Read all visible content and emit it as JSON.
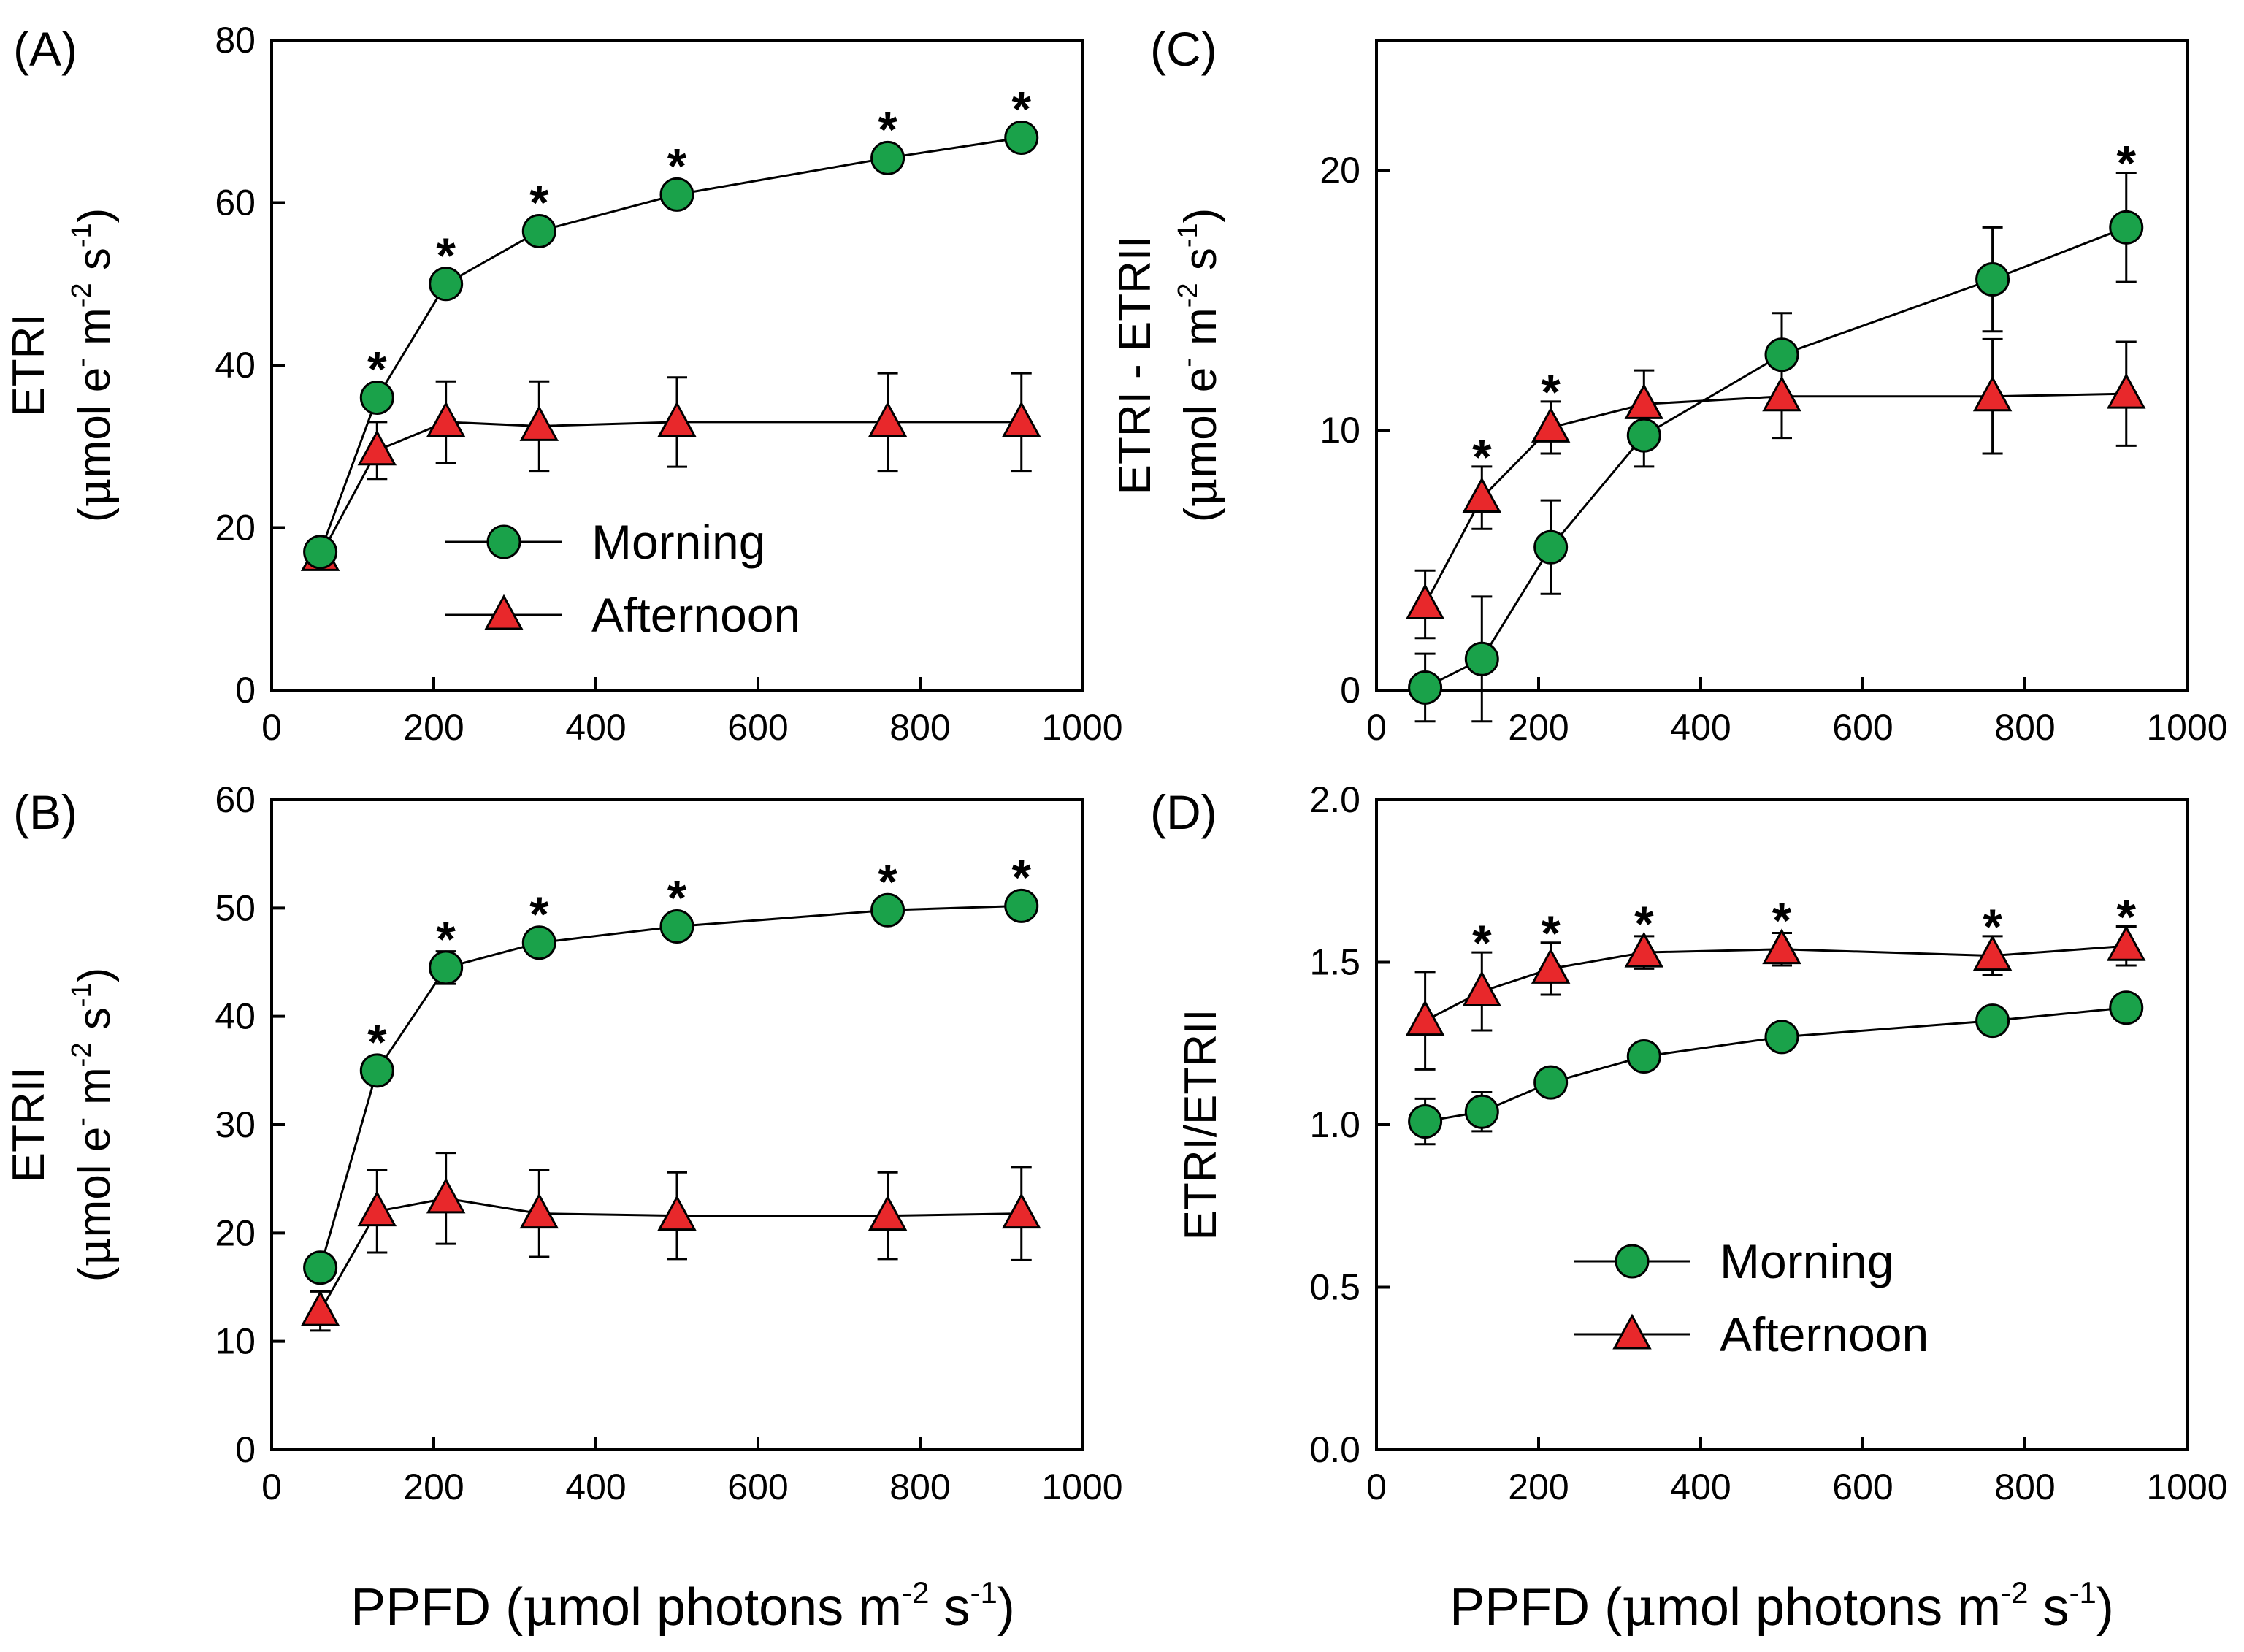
{
  "x_label": {
    "prefix": "PPFD (",
    "mu": "μ",
    "main": "mol photons m",
    "sup1": "-2",
    "mid": " s",
    "sup2": "-1",
    "end": ")"
  },
  "legend": {
    "morning": "Morning",
    "afternoon": "Afternoon"
  },
  "colors": {
    "morning": "#1aa24a",
    "afternoon": "#e8282b",
    "marker_edge": "#000000"
  },
  "chart_data": [
    {
      "id": "A",
      "panel_label": "(A)",
      "type": "line",
      "ylabel_main": "ETRI",
      "ylabel_unit": {
        "open": "(",
        "mu": "μ",
        "text": "mol e",
        "sup_e": "-",
        "mid": " m",
        "sup_m": "-2",
        "s": " s",
        "sup_s": "-1",
        "close": ")"
      },
      "xlim": [
        0,
        1000
      ],
      "ylim": [
        0,
        80
      ],
      "xticks": [
        "0",
        "200",
        "400",
        "600",
        "800",
        "1000"
      ],
      "yticks": [
        "0",
        "20",
        "40",
        "60",
        "80"
      ],
      "legend_position": "center-right",
      "x": [
        60,
        130,
        215,
        330,
        500,
        760,
        925
      ],
      "series": [
        {
          "name": "Morning",
          "values": [
            17,
            36,
            50,
            56.5,
            61,
            65.5,
            68
          ],
          "errors": [
            1,
            1,
            1,
            1,
            1,
            1,
            1
          ]
        },
        {
          "name": "Afternoon",
          "values": [
            16.5,
            29.5,
            33,
            32.5,
            33,
            33,
            33
          ],
          "errors": [
            1.5,
            3.5,
            5,
            5.5,
            5.5,
            6,
            6
          ]
        }
      ],
      "significance": [
        "",
        "*",
        "*",
        "*",
        "*",
        "*",
        "*"
      ]
    },
    {
      "id": "B",
      "panel_label": "(B)",
      "type": "line",
      "ylabel_main": "ETRII",
      "ylabel_unit": {
        "open": "(",
        "mu": "μ",
        "text": "mol e",
        "sup_e": "-",
        "mid": " m",
        "sup_m": "-2",
        "s": " s",
        "sup_s": "-1",
        "close": ")"
      },
      "xlim": [
        0,
        1000
      ],
      "ylim": [
        0,
        60
      ],
      "xticks": [
        "0",
        "200",
        "400",
        "600",
        "800",
        "1000"
      ],
      "yticks": [
        "0",
        "10",
        "20",
        "30",
        "40",
        "50",
        "60"
      ],
      "legend_position": "none",
      "x": [
        60,
        130,
        215,
        330,
        500,
        760,
        925
      ],
      "series": [
        {
          "name": "Morning",
          "values": [
            16.8,
            35,
            44.5,
            46.8,
            48.3,
            49.8,
            50.2
          ],
          "errors": [
            0.8,
            1,
            1.5,
            1.2,
            1,
            1,
            1
          ]
        },
        {
          "name": "Afternoon",
          "values": [
            12.8,
            22,
            23.2,
            21.8,
            21.6,
            21.6,
            21.8
          ],
          "errors": [
            1.8,
            3.8,
            4.2,
            4,
            4,
            4,
            4.3
          ]
        }
      ],
      "significance": [
        "",
        "*",
        "*",
        "*",
        "*",
        "*",
        "*"
      ]
    },
    {
      "id": "C",
      "panel_label": "(C)",
      "type": "line",
      "ylabel_main": "ETRI - ETRII",
      "ylabel_unit": {
        "open": "(",
        "mu": "μ",
        "text": "mol e",
        "sup_e": "-",
        "mid": " m",
        "sup_m": "-2",
        "s": " s",
        "sup_s": "-1",
        "close": ")"
      },
      "xlim": [
        0,
        1000
      ],
      "ylim": [
        0,
        25
      ],
      "xticks": [
        "0",
        "200",
        "400",
        "600",
        "800",
        "1000"
      ],
      "yticks": [
        "0",
        "10",
        "20"
      ],
      "legend_position": "none",
      "x": [
        60,
        130,
        215,
        330,
        500,
        760,
        925
      ],
      "series": [
        {
          "name": "Morning",
          "values": [
            0.1,
            1.2,
            5.5,
            9.8,
            12.9,
            15.8,
            17.8
          ],
          "errors": [
            1.3,
            2.4,
            1.8,
            1.2,
            1.6,
            2,
            2.1
          ]
        },
        {
          "name": "Afternoon",
          "values": [
            3.3,
            7.4,
            10.1,
            11,
            11.3,
            11.3,
            11.4
          ],
          "errors": [
            1.3,
            1.2,
            1,
            1.3,
            1.6,
            2.2,
            2
          ]
        }
      ],
      "significance": [
        "",
        "*",
        "*",
        "",
        "",
        "",
        "*"
      ]
    },
    {
      "id": "D",
      "panel_label": "(D)",
      "type": "line",
      "ylabel_main": "ETRI/ETRII",
      "xlim": [
        0,
        1000
      ],
      "ylim": [
        0,
        2
      ],
      "xticks": [
        "0",
        "200",
        "400",
        "600",
        "800",
        "1000"
      ],
      "yticks": [
        "0.0",
        "0.5",
        "1.0",
        "1.5",
        "2.0"
      ],
      "legend_position": "lower-right",
      "x": [
        60,
        130,
        215,
        330,
        500,
        760,
        925
      ],
      "series": [
        {
          "name": "Morning",
          "values": [
            1.01,
            1.04,
            1.13,
            1.21,
            1.27,
            1.32,
            1.36
          ],
          "errors": [
            0.07,
            0.06,
            0.03,
            0.03,
            0.02,
            0.02,
            0.02
          ]
        },
        {
          "name": "Afternoon",
          "values": [
            1.32,
            1.41,
            1.48,
            1.53,
            1.54,
            1.52,
            1.55
          ],
          "errors": [
            0.15,
            0.12,
            0.08,
            0.05,
            0.05,
            0.06,
            0.06
          ]
        }
      ],
      "significance": [
        "",
        "*",
        "*",
        "*",
        "*",
        "*",
        "*"
      ]
    }
  ]
}
